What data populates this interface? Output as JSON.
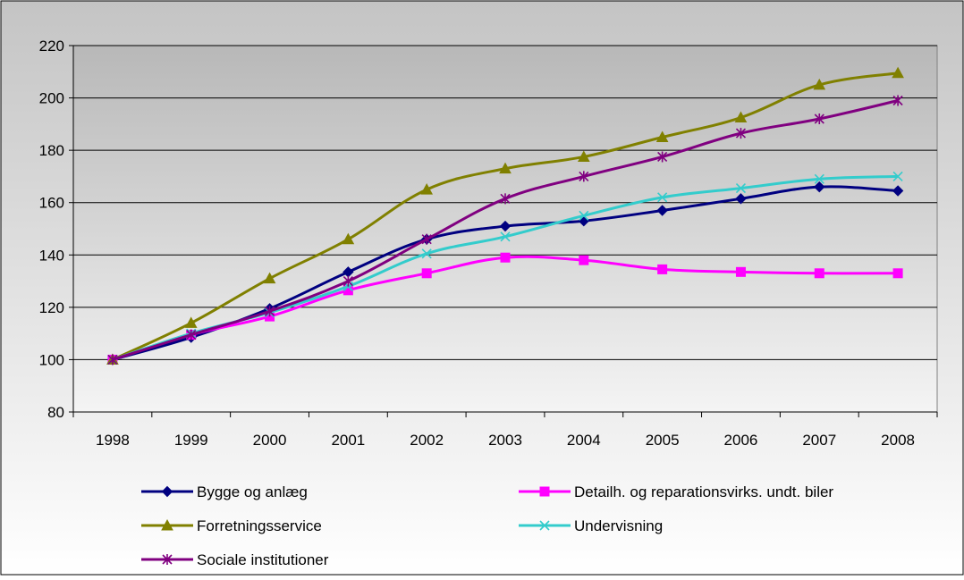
{
  "chart_data": {
    "type": "line",
    "x": [
      "1998",
      "1999",
      "2000",
      "2001",
      "2002",
      "2003",
      "2004",
      "2005",
      "2006",
      "2007",
      "2008"
    ],
    "ylim": [
      80,
      220
    ],
    "yticks": [
      80,
      100,
      120,
      140,
      160,
      180,
      200,
      220
    ],
    "grid": "horizontal",
    "legend_position": "bottom",
    "series": [
      {
        "name": "Bygge og anlæg",
        "color": "#000080",
        "marker": "diamond",
        "values": [
          100,
          108.5,
          119.5,
          133.5,
          146,
          151,
          153,
          157,
          161.5,
          166,
          164.5
        ]
      },
      {
        "name": "Detailh. og reparationsvirks. undt. biler",
        "color": "#ff00ff",
        "marker": "square",
        "values": [
          100,
          109.5,
          116.5,
          126.5,
          133,
          139,
          138,
          134.5,
          133.5,
          133,
          133
        ]
      },
      {
        "name": "Forretningsservice",
        "color": "#808000",
        "marker": "triangle",
        "values": [
          100,
          114,
          131,
          146,
          165,
          173,
          177.5,
          185,
          192.5,
          205,
          209.5
        ]
      },
      {
        "name": "Undervisning",
        "color": "#33cccc",
        "marker": "x",
        "values": [
          100,
          110,
          118,
          128,
          140.5,
          147,
          155,
          162,
          165.5,
          169,
          170
        ]
      },
      {
        "name": "Sociale institutioner",
        "color": "#800080",
        "marker": "star",
        "values": [
          100,
          109.5,
          118.5,
          130,
          146,
          161.5,
          170,
          177.5,
          186.5,
          192,
          199
        ]
      }
    ]
  }
}
